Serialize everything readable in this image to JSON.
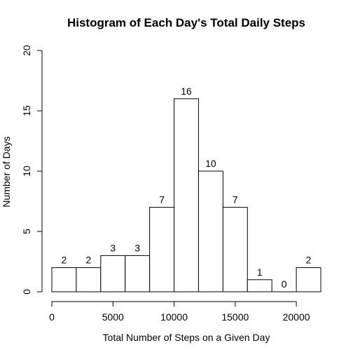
{
  "chart_data": {
    "type": "bar",
    "title": "Histogram of Each Day's Total Daily Steps",
    "xlabel": "Total Number of Steps on a Given Day",
    "ylabel": "Number of Days",
    "xlim": [
      0,
      22000
    ],
    "ylim": [
      0,
      20
    ],
    "x_ticks": [
      0,
      5000,
      10000,
      15000,
      20000
    ],
    "x_tick_labels": [
      "0",
      "5000",
      "10000",
      "15000",
      "20000"
    ],
    "y_ticks": [
      0,
      5,
      10,
      15,
      20
    ],
    "y_tick_labels": [
      "0",
      "5",
      "10",
      "15",
      "20"
    ],
    "bins": [
      {
        "from": 0,
        "to": 2000,
        "value": 2,
        "label": "2"
      },
      {
        "from": 2000,
        "to": 4000,
        "value": 2,
        "label": "2"
      },
      {
        "from": 4000,
        "to": 6000,
        "value": 3,
        "label": "3"
      },
      {
        "from": 6000,
        "to": 8000,
        "value": 3,
        "label": "3"
      },
      {
        "from": 8000,
        "to": 10000,
        "value": 7,
        "label": "7"
      },
      {
        "from": 10000,
        "to": 12000,
        "value": 16,
        "label": "16"
      },
      {
        "from": 12000,
        "to": 14000,
        "value": 10,
        "label": "10"
      },
      {
        "from": 14000,
        "to": 16000,
        "value": 7,
        "label": "7"
      },
      {
        "from": 16000,
        "to": 18000,
        "value": 1,
        "label": "1"
      },
      {
        "from": 18000,
        "to": 20000,
        "value": 0,
        "label": "0"
      },
      {
        "from": 20000,
        "to": 22000,
        "value": 2,
        "label": "2"
      }
    ],
    "bar_fill": "#ffffff",
    "bar_stroke": "#000000",
    "grid": false,
    "legend": "none"
  }
}
